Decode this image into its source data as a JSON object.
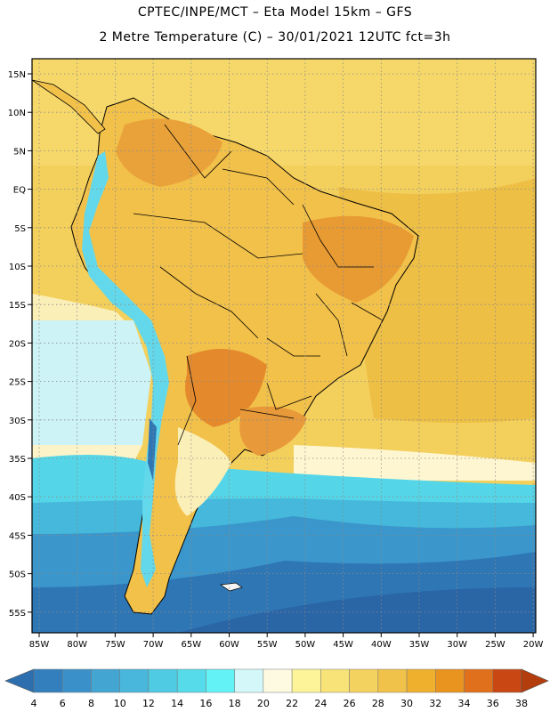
{
  "header": {
    "line1": "CPTEC/INPE/MCT –  Eta Model 15km – GFS",
    "line2": "2 Metre Temperature (C) – 30/01/2021 12UTC fct=3h"
  },
  "map": {
    "lat_labels": [
      "15N",
      "10N",
      "5N",
      "EQ",
      "5S",
      "10S",
      "15S",
      "20S",
      "25S",
      "30S",
      "35S",
      "40S",
      "45S",
      "50S",
      "55S"
    ],
    "lon_labels": [
      "85W",
      "80W",
      "75W",
      "70W",
      "65W",
      "60W",
      "55W",
      "50W",
      "45W",
      "40W",
      "35W",
      "30W",
      "25W",
      "20W"
    ],
    "ocean_base_color": "#f3cf5c",
    "land_base_color": "#f2c14a",
    "border_color": "#000000"
  },
  "colorbar": {
    "labels": [
      "4",
      "6",
      "8",
      "10",
      "12",
      "14",
      "16",
      "18",
      "20",
      "22",
      "24",
      "26",
      "28",
      "30",
      "32",
      "34",
      "36",
      "38"
    ],
    "colors": [
      "#2d6fae",
      "#337fbd",
      "#3a91c9",
      "#42a5d2",
      "#49b7db",
      "#4fcbe3",
      "#55dbe9",
      "#63f2f5",
      "#d4f8f9",
      "#fefae2",
      "#fdf49a",
      "#f8e378",
      "#f4d25f",
      "#f0c24a",
      "#eeb02d",
      "#ea9420",
      "#e0701b",
      "#c84712",
      "#b33d0d"
    ]
  }
}
